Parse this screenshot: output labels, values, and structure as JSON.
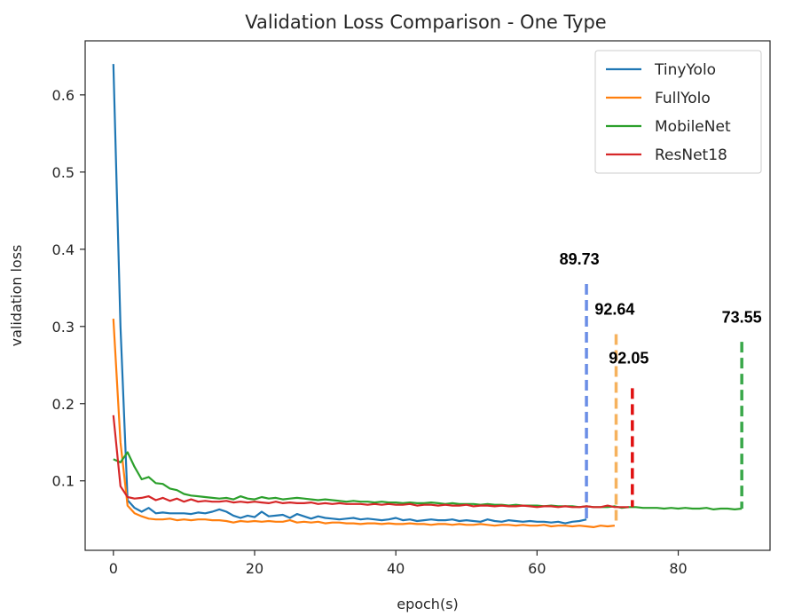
{
  "chart_data": {
    "type": "line",
    "title": "Validation Loss Comparison - One Type",
    "xlabel": "epoch(s)",
    "ylabel": "validation loss",
    "xlim": [
      -4,
      93
    ],
    "ylim": [
      0.01,
      0.67
    ],
    "xticks": [
      0,
      20,
      40,
      60,
      80
    ],
    "yticks": [
      0.1,
      0.2,
      0.3,
      0.4,
      0.5,
      0.6
    ],
    "grid": false,
    "legend_position": "top-right",
    "series": [
      {
        "name": "TinyYolo",
        "color": "#1f77b4",
        "x": [
          0,
          1,
          2,
          3,
          4,
          5,
          6,
          7,
          8,
          9,
          10,
          11,
          12,
          13,
          14,
          15,
          16,
          17,
          18,
          19,
          20,
          21,
          22,
          23,
          24,
          25,
          26,
          27,
          28,
          29,
          30,
          31,
          32,
          33,
          34,
          35,
          36,
          37,
          38,
          39,
          40,
          41,
          42,
          43,
          44,
          45,
          46,
          47,
          48,
          49,
          50,
          51,
          52,
          53,
          54,
          55,
          56,
          57,
          58,
          59,
          60,
          61,
          62,
          63,
          64,
          65,
          66,
          67
        ],
        "y": [
          0.64,
          0.3,
          0.075,
          0.065,
          0.06,
          0.065,
          0.058,
          0.059,
          0.058,
          0.058,
          0.058,
          0.057,
          0.059,
          0.058,
          0.06,
          0.063,
          0.06,
          0.055,
          0.052,
          0.055,
          0.053,
          0.06,
          0.054,
          0.055,
          0.056,
          0.052,
          0.057,
          0.054,
          0.051,
          0.054,
          0.052,
          0.051,
          0.05,
          0.051,
          0.052,
          0.05,
          0.051,
          0.05,
          0.049,
          0.05,
          0.052,
          0.049,
          0.05,
          0.048,
          0.049,
          0.05,
          0.049,
          0.049,
          0.05,
          0.048,
          0.049,
          0.048,
          0.047,
          0.05,
          0.048,
          0.047,
          0.049,
          0.048,
          0.047,
          0.048,
          0.047,
          0.047,
          0.046,
          0.047,
          0.045,
          0.047,
          0.048,
          0.05
        ]
      },
      {
        "name": "FullYolo",
        "color": "#ff7f0e",
        "x": [
          0,
          1,
          2,
          3,
          4,
          5,
          6,
          7,
          8,
          9,
          10,
          11,
          12,
          13,
          14,
          15,
          16,
          17,
          18,
          19,
          20,
          21,
          22,
          23,
          24,
          25,
          26,
          27,
          28,
          29,
          30,
          31,
          32,
          33,
          34,
          35,
          36,
          37,
          38,
          39,
          40,
          41,
          42,
          43,
          44,
          45,
          46,
          47,
          48,
          49,
          50,
          51,
          52,
          53,
          54,
          55,
          56,
          57,
          58,
          59,
          60,
          61,
          62,
          63,
          64,
          65,
          66,
          67,
          68,
          69,
          70,
          71
        ],
        "y": [
          0.31,
          0.15,
          0.068,
          0.058,
          0.054,
          0.051,
          0.05,
          0.05,
          0.051,
          0.049,
          0.05,
          0.049,
          0.05,
          0.05,
          0.049,
          0.049,
          0.048,
          0.046,
          0.048,
          0.047,
          0.048,
          0.047,
          0.048,
          0.047,
          0.047,
          0.049,
          0.046,
          0.047,
          0.046,
          0.047,
          0.045,
          0.046,
          0.046,
          0.045,
          0.045,
          0.044,
          0.045,
          0.045,
          0.044,
          0.045,
          0.044,
          0.044,
          0.045,
          0.044,
          0.044,
          0.043,
          0.044,
          0.044,
          0.043,
          0.044,
          0.043,
          0.043,
          0.044,
          0.043,
          0.042,
          0.043,
          0.043,
          0.042,
          0.043,
          0.042,
          0.042,
          0.043,
          0.041,
          0.042,
          0.042,
          0.041,
          0.042,
          0.041,
          0.04,
          0.042,
          0.041,
          0.042
        ]
      },
      {
        "name": "MobileNet",
        "color": "#2ca02c",
        "x": [
          0,
          1,
          2,
          3,
          4,
          5,
          6,
          7,
          8,
          9,
          10,
          11,
          12,
          13,
          14,
          15,
          16,
          17,
          18,
          19,
          20,
          21,
          22,
          23,
          24,
          25,
          26,
          27,
          28,
          29,
          30,
          31,
          32,
          33,
          34,
          35,
          36,
          37,
          38,
          39,
          40,
          41,
          42,
          43,
          44,
          45,
          46,
          47,
          48,
          49,
          50,
          51,
          52,
          53,
          54,
          55,
          56,
          57,
          58,
          59,
          60,
          61,
          62,
          63,
          64,
          65,
          66,
          67,
          68,
          69,
          70,
          71,
          72,
          73,
          74,
          75,
          76,
          77,
          78,
          79,
          80,
          81,
          82,
          83,
          84,
          85,
          86,
          87,
          88,
          89
        ],
        "y": [
          0.128,
          0.124,
          0.137,
          0.118,
          0.102,
          0.105,
          0.097,
          0.096,
          0.09,
          0.088,
          0.083,
          0.081,
          0.08,
          0.079,
          0.078,
          0.077,
          0.078,
          0.076,
          0.08,
          0.077,
          0.076,
          0.079,
          0.077,
          0.078,
          0.076,
          0.077,
          0.078,
          0.077,
          0.076,
          0.075,
          0.076,
          0.075,
          0.074,
          0.073,
          0.074,
          0.073,
          0.073,
          0.072,
          0.073,
          0.072,
          0.072,
          0.071,
          0.072,
          0.071,
          0.071,
          0.072,
          0.071,
          0.07,
          0.071,
          0.07,
          0.07,
          0.07,
          0.069,
          0.07,
          0.069,
          0.069,
          0.068,
          0.069,
          0.068,
          0.068,
          0.068,
          0.067,
          0.068,
          0.067,
          0.067,
          0.067,
          0.066,
          0.067,
          0.066,
          0.066,
          0.066,
          0.067,
          0.065,
          0.066,
          0.066,
          0.065,
          0.065,
          0.065,
          0.064,
          0.065,
          0.064,
          0.065,
          0.064,
          0.064,
          0.065,
          0.063,
          0.064,
          0.064,
          0.063,
          0.064
        ]
      },
      {
        "name": "ResNet18",
        "color": "#d62728",
        "x": [
          0,
          1,
          2,
          3,
          4,
          5,
          6,
          7,
          8,
          9,
          10,
          11,
          12,
          13,
          14,
          15,
          16,
          17,
          18,
          19,
          20,
          21,
          22,
          23,
          24,
          25,
          26,
          27,
          28,
          29,
          30,
          31,
          32,
          33,
          34,
          35,
          36,
          37,
          38,
          39,
          40,
          41,
          42,
          43,
          44,
          45,
          46,
          47,
          48,
          49,
          50,
          51,
          52,
          53,
          54,
          55,
          56,
          57,
          58,
          59,
          60,
          61,
          62,
          63,
          64,
          65,
          66,
          67,
          68,
          69,
          70,
          71,
          72,
          73
        ],
        "y": [
          0.185,
          0.093,
          0.079,
          0.077,
          0.078,
          0.08,
          0.075,
          0.078,
          0.074,
          0.077,
          0.073,
          0.076,
          0.073,
          0.074,
          0.073,
          0.073,
          0.074,
          0.072,
          0.073,
          0.072,
          0.073,
          0.072,
          0.071,
          0.073,
          0.071,
          0.072,
          0.071,
          0.071,
          0.072,
          0.07,
          0.071,
          0.07,
          0.071,
          0.07,
          0.07,
          0.07,
          0.069,
          0.07,
          0.069,
          0.07,
          0.069,
          0.069,
          0.07,
          0.068,
          0.069,
          0.069,
          0.068,
          0.069,
          0.068,
          0.068,
          0.069,
          0.067,
          0.068,
          0.068,
          0.067,
          0.068,
          0.067,
          0.067,
          0.068,
          0.067,
          0.066,
          0.067,
          0.067,
          0.066,
          0.067,
          0.066,
          0.066,
          0.067,
          0.066,
          0.066,
          0.068,
          0.066,
          0.066,
          0.066
        ]
      }
    ],
    "annotations": [
      {
        "label": "89.73",
        "series": "TinyYolo",
        "x": 67,
        "y_top": 0.355,
        "y_bottom": 0.05,
        "label_x": 66,
        "label_y": 0.38,
        "color": "#6b8ee6"
      },
      {
        "label": "92.64",
        "series": "FullYolo",
        "x": 71.2,
        "y_top": 0.29,
        "y_bottom": 0.042,
        "label_x": 71,
        "label_y": 0.315,
        "color": "#f6b25e"
      },
      {
        "label": "92.05",
        "series": "ResNet18",
        "x": 73.5,
        "y_top": 0.22,
        "y_bottom": 0.066,
        "label_x": 73,
        "label_y": 0.252,
        "color": "#e01010"
      },
      {
        "label": "73.55",
        "series": "MobileNet",
        "x": 89,
        "y_top": 0.28,
        "y_bottom": 0.064,
        "label_x": 89,
        "label_y": 0.305,
        "color": "#3aa84a"
      }
    ]
  }
}
